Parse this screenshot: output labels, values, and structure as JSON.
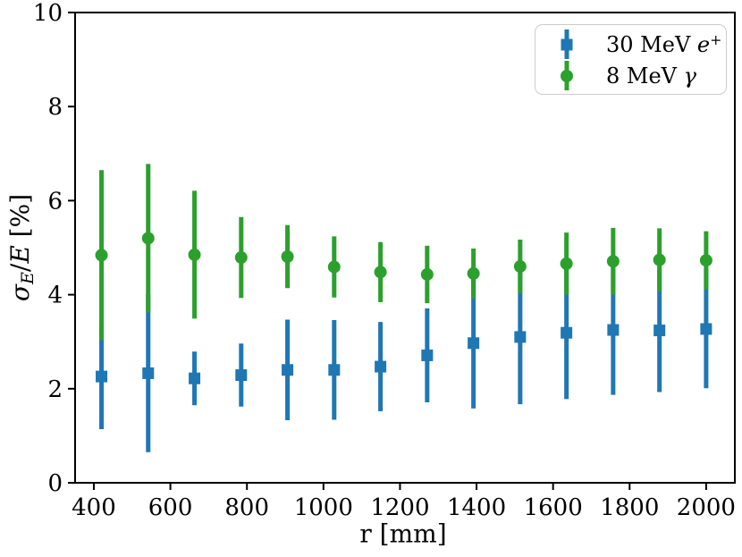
{
  "figure": {
    "background": "#ffffff",
    "text_color": "#000000",
    "spine_color": "#000000"
  },
  "axes": {
    "xlabel_parts": {
      "name": "r",
      "unit": " [mm]"
    },
    "ylabel_parts": {
      "sigma": "σ",
      "sub": "E",
      "slash": "/",
      "E": "E",
      "unit": " [%]"
    }
  },
  "chart_data": {
    "type": "scatter",
    "style": "errorbar",
    "title": "",
    "xlabel": "r [mm]",
    "ylabel": "σ_E/E [%]",
    "xlim": [
      351,
      2075
    ],
    "ylim": [
      0,
      10
    ],
    "x_ticks": [
      400,
      600,
      800,
      1000,
      1200,
      1400,
      1600,
      1800,
      2000
    ],
    "y_ticks": [
      0,
      2,
      4,
      6,
      8,
      10
    ],
    "grid": false,
    "legend_position": "upper right",
    "x": [
      420,
      542,
      663,
      785,
      906,
      1028,
      1149,
      1271,
      1392,
      1514,
      1635,
      1757,
      1878,
      2000
    ],
    "series": [
      {
        "name": "positrons",
        "label": "30 MeV e⁺",
        "label_parts": {
          "prefix": "30 MeV ",
          "symbol": "e",
          "charge": "+"
        },
        "marker": "square",
        "color": "#1f77b4",
        "y": [
          2.26,
          2.33,
          2.22,
          2.29,
          2.4,
          2.4,
          2.47,
          2.71,
          2.97,
          3.1,
          3.19,
          3.25,
          3.24,
          3.27
        ],
        "yerr": [
          1.12,
          1.68,
          0.57,
          0.67,
          1.07,
          1.06,
          0.95,
          1.0,
          1.39,
          1.43,
          1.41,
          1.38,
          1.31,
          1.26
        ]
      },
      {
        "name": "gammas",
        "label": "8 MeV γ",
        "label_parts": {
          "prefix": "8 MeV ",
          "symbol": "γ",
          "charge": ""
        },
        "marker": "circle",
        "color": "#2ca02c",
        "y": [
          4.84,
          5.2,
          4.85,
          4.79,
          4.81,
          4.59,
          4.48,
          4.43,
          4.45,
          4.6,
          4.66,
          4.71,
          4.74,
          4.73
        ],
        "yerr": [
          1.81,
          1.58,
          1.36,
          0.86,
          0.67,
          0.65,
          0.64,
          0.61,
          0.53,
          0.57,
          0.66,
          0.71,
          0.67,
          0.62
        ]
      }
    ]
  }
}
